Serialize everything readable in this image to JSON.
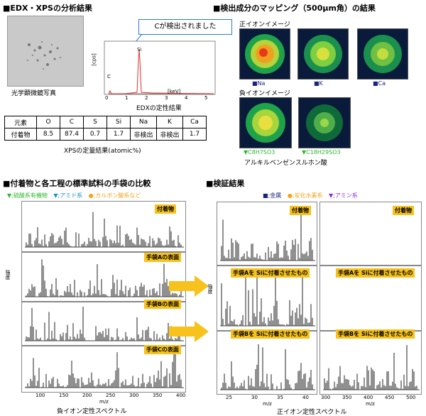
{
  "sec1": {
    "title": "■EDX・XPSの分析結果"
  },
  "photo": {
    "caption": "光学顕微鏡写真"
  },
  "edx": {
    "callout": "Cが検出されました",
    "ylabel": "[cps]",
    "xunit": "[keV]",
    "ticks": [
      "0",
      "1",
      "2",
      "3",
      "4",
      "5"
    ],
    "peak_c": "C",
    "peak_si": "Si",
    "caption": "EDXの定性結果"
  },
  "xps": {
    "headers": [
      "元素",
      "O",
      "C",
      "S",
      "Si",
      "Na",
      "K",
      "Ca"
    ],
    "row": [
      "付着物",
      "8.5",
      "87.4",
      "0.7",
      "1.7",
      "非検出",
      "非検出",
      "1.7"
    ],
    "caption": "XPSの定量結果(atomic%)"
  },
  "sec2": {
    "title": "■検出成分のマッピング（500μm角）の結果",
    "pos_label": "正イオンイメージ",
    "neg_label": "負イオンイメージ",
    "pos_items": [
      "■Na",
      "■K",
      "■Ca"
    ],
    "neg_items": [
      "▼C8H7SO3",
      "▼C18H29SO3"
    ],
    "neg_caption": "アルキルベンゼンスルホン酸"
  },
  "sec3": {
    "title": "■付着物と各工程の標準試料の手袋の比較",
    "legend": [
      "▼;硫酸系有機物",
      "▼;アミド系",
      "●;カルボン酸系など"
    ],
    "panels": [
      "付着物",
      "手袋Aの表面",
      "手袋Bの表面",
      "手袋Cの表面"
    ],
    "ylabel": "強度",
    "xlabel": "m/z",
    "xticks": [
      "100",
      "150",
      "200",
      "250",
      "300",
      "350",
      "400"
    ],
    "caption": "負イオン定性スペクトル"
  },
  "sec4": {
    "title": "■検証結果",
    "legend": [
      "■;金属",
      "●;炭化水素系",
      "▼;アミン系"
    ],
    "left_panels": [
      "付着物",
      "手袋Aを Siに付着させたもの",
      "手袋Bを Siに付着させたもの"
    ],
    "right_panels": [
      "付着物",
      "手袋Aを Siに付着させたもの",
      "手袋Bを Siに付着させたもの"
    ],
    "ylabel": "強度",
    "xlabel": "m/z",
    "left_xticks": [
      "25",
      "30",
      "35",
      "40"
    ],
    "right_xticks": [
      "300",
      "350",
      "400",
      "450",
      "500"
    ],
    "caption": "正イオン定性スペクトル"
  },
  "colors": {
    "green": "#2eb82e",
    "blue": "#1a8fd6",
    "orange": "#f6a21b",
    "purple": "#8a2be2",
    "navy": "#1a237e",
    "yellow": "#f6c21b",
    "red": "#e03030"
  }
}
